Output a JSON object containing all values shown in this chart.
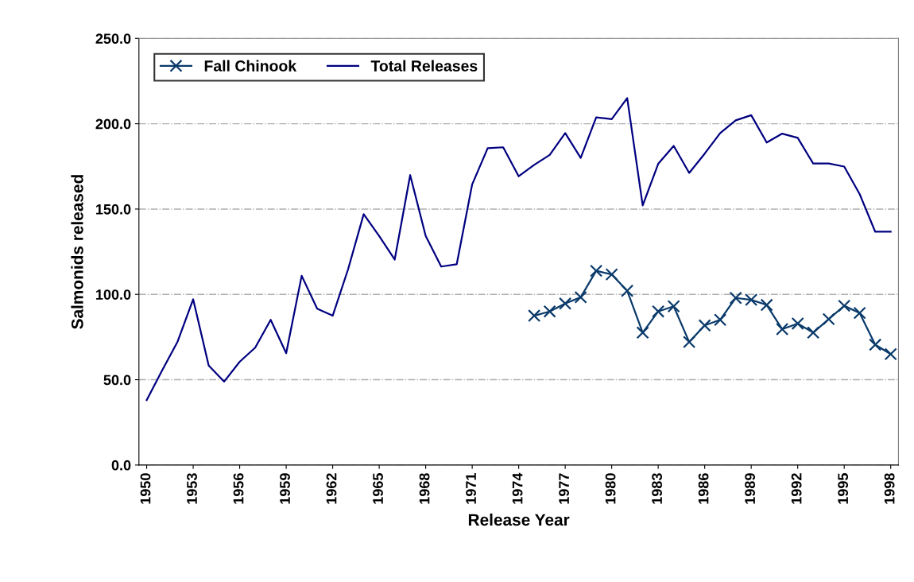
{
  "chart_data": {
    "type": "line",
    "xlabel": "Release Year",
    "ylabel": "Salmonids released",
    "x": [
      1950,
      1951,
      1952,
      1953,
      1954,
      1955,
      1956,
      1957,
      1958,
      1959,
      1960,
      1961,
      1962,
      1963,
      1964,
      1965,
      1966,
      1967,
      1968,
      1969,
      1970,
      1971,
      1972,
      1973,
      1974,
      1975,
      1976,
      1977,
      1978,
      1979,
      1980,
      1981,
      1982,
      1983,
      1984,
      1985,
      1986,
      1987,
      1988,
      1989,
      1990,
      1991,
      1992,
      1993,
      1994,
      1995,
      1996,
      1997,
      1998
    ],
    "series": [
      {
        "name": "Fall Chinook",
        "color": "#0a3a6a",
        "marker": "cross",
        "values": [
          null,
          null,
          null,
          null,
          null,
          null,
          null,
          null,
          null,
          null,
          null,
          null,
          null,
          null,
          null,
          null,
          null,
          null,
          null,
          null,
          null,
          null,
          null,
          null,
          null,
          87.5,
          90.0,
          94.6,
          98.3,
          113.8,
          111.7,
          102.1,
          77.6,
          90.0,
          93.0,
          72.1,
          81.8,
          85.1,
          97.9,
          96.8,
          93.8,
          79.6,
          82.9,
          77.6,
          85.5,
          93.3,
          89.1,
          70.5,
          65.0
        ]
      },
      {
        "name": "Total Releases",
        "color": "#000080",
        "values": [
          38.0,
          55.5,
          72.4,
          97.1,
          58.3,
          48.9,
          60.5,
          68.8,
          85.1,
          65.5,
          110.9,
          91.6,
          87.5,
          114.9,
          147.0,
          134.2,
          120.4,
          169.9,
          134.2,
          116.3,
          117.6,
          164.5,
          185.7,
          186.2,
          169.2,
          175.9,
          181.7,
          194.5,
          180.0,
          203.7,
          202.7,
          215.0,
          152.1,
          176.5,
          187.0,
          171.2,
          182.5,
          194.5,
          202.0,
          205.0,
          189.0,
          194.2,
          191.7,
          176.7,
          176.7,
          174.9,
          158.7,
          136.7,
          136.7
        ]
      }
    ],
    "xlim": [
      1949.5,
      1998.5
    ],
    "xticks": [
      1950,
      1953,
      1956,
      1959,
      1962,
      1965,
      1968,
      1971,
      1974,
      1977,
      1980,
      1983,
      1986,
      1989,
      1992,
      1995,
      1998
    ],
    "ylim": [
      0,
      250
    ],
    "yticks": [
      {
        "value": 0,
        "label": "0.0"
      },
      {
        "value": 50,
        "label": "50.0"
      },
      {
        "value": 100,
        "label": "100.0"
      },
      {
        "value": 150,
        "label": "150.0"
      },
      {
        "value": 200,
        "label": "200.0"
      },
      {
        "value": 250,
        "label": "250.0"
      }
    ],
    "grid": "y",
    "legend": "top left",
    "line_style": "solid"
  }
}
